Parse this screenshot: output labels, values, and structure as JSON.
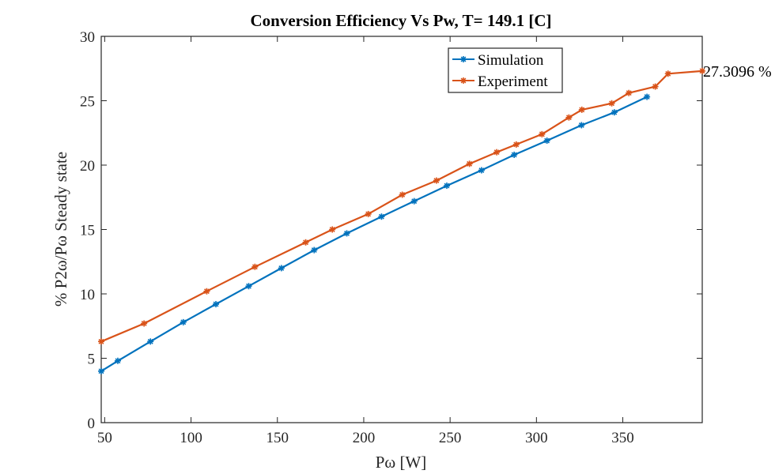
{
  "chart_data": {
    "type": "line",
    "title": "Conversion Efficiency Vs Pw, T= 149.1 [C]",
    "xlabel": "Pω [W]",
    "ylabel": "% P2ω/Pω Steady state",
    "xlim": [
      48,
      396
    ],
    "ylim": [
      0,
      30
    ],
    "xticks": [
      50,
      100,
      150,
      200,
      250,
      300,
      350
    ],
    "yticks": [
      0,
      5,
      10,
      15,
      20,
      25,
      30
    ],
    "grid": false,
    "legend_position": "top-right",
    "annotation": "27.3096 %",
    "series": [
      {
        "name": "Simulation",
        "color": "#0072BD",
        "marker": "asterisk",
        "x": [
          48,
          57.6,
          76.5,
          95.5,
          114.4,
          133.4,
          152.3,
          171.3,
          190.2,
          210.3,
          229.2,
          248.1,
          268.2,
          287.1,
          306.1,
          326.1,
          345.1,
          364.0
        ],
        "y": [
          4.0,
          4.8,
          6.3,
          7.8,
          9.2,
          10.6,
          12.0,
          13.4,
          14.7,
          16.0,
          17.2,
          18.4,
          19.6,
          20.8,
          21.9,
          23.1,
          24.1,
          25.3
        ]
      },
      {
        "name": "Experiment",
        "color": "#D95319",
        "marker": "asterisk",
        "x": [
          48,
          72.8,
          109.1,
          137.0,
          166.4,
          181.8,
          202.6,
          222.3,
          242.1,
          261.2,
          277.0,
          288.3,
          303.2,
          318.8,
          326.3,
          343.6,
          353.5,
          368.8,
          376.2,
          396.0
        ],
        "y": [
          6.3,
          7.7,
          10.2,
          12.1,
          14.0,
          15.0,
          16.2,
          17.7,
          18.8,
          20.1,
          21.0,
          21.6,
          22.4,
          23.7,
          24.3,
          24.8,
          25.6,
          26.1,
          27.1,
          27.3096
        ]
      }
    ]
  }
}
